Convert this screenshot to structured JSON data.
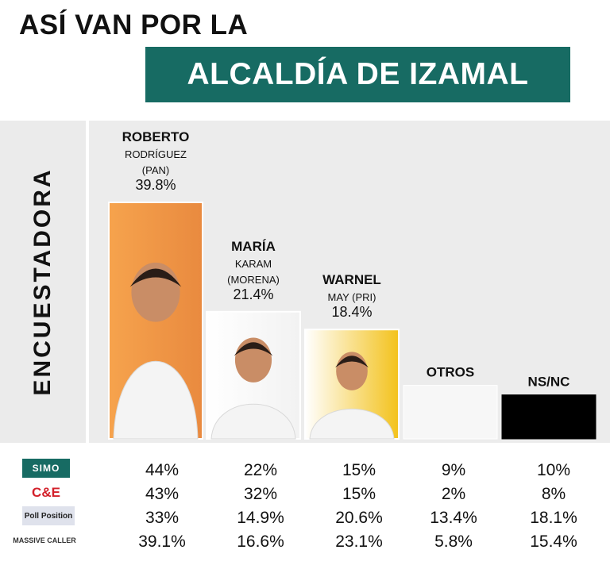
{
  "header": {
    "title_line1": "ASÍ VAN POR LA",
    "title_line2": "ALCALDÍA DE IZAMAL"
  },
  "side_label": "ENCUESTADORA",
  "colors": {
    "title_box": "#176b63",
    "panel_bg": "#ececec",
    "otros_bar": "#f7f7f7",
    "nsnc_bar": "#000000"
  },
  "chart_data": {
    "type": "bar",
    "categories": [
      "ROBERTO RODRÍGUEZ (PAN)",
      "MARÍA KARAM (MORENA)",
      "WARNEL MAY (PRI)",
      "OTROS",
      "NS/NC"
    ],
    "values": [
      39.8,
      21.4,
      18.4,
      9.0,
      7.4
    ],
    "value_labels": [
      "39.8%",
      "21.4%",
      "18.4%",
      "",
      ""
    ],
    "ylim": [
      0,
      40
    ],
    "candidates": [
      {
        "name": "ROBERTO",
        "line2": "RODRÍGUEZ",
        "line3": "(PAN)",
        "value_label": "39.8%",
        "photo": "candidate-photo"
      },
      {
        "name": "MARÍA",
        "line2": "KARAM",
        "line3": "(MORENA)",
        "value_label": "21.4%",
        "photo": "candidate-photo"
      },
      {
        "name": "WARNEL",
        "line2": "MAY (PRI)",
        "line3": "",
        "value_label": "18.4%",
        "photo": "candidate-photo"
      },
      {
        "name": "OTROS",
        "line2": "",
        "line3": "",
        "value_label": "",
        "photo": ""
      },
      {
        "name": "NS/NC",
        "line2": "",
        "line3": "",
        "value_label": "",
        "photo": ""
      }
    ]
  },
  "pollsters": [
    {
      "logo": "SIMO",
      "values": [
        "44%",
        "22%",
        "15%",
        "9%",
        "10%"
      ]
    },
    {
      "logo": "C&E",
      "values": [
        "43%",
        "32%",
        "15%",
        "2%",
        "8%"
      ]
    },
    {
      "logo": "Poll Position",
      "values": [
        "33%",
        "14.9%",
        "20.6%",
        "13.4%",
        "18.1%"
      ]
    },
    {
      "logo": "MASSIVE CALLER",
      "values": [
        "39.1%",
        "16.6%",
        "23.1%",
        "5.8%",
        "15.4%"
      ]
    }
  ]
}
